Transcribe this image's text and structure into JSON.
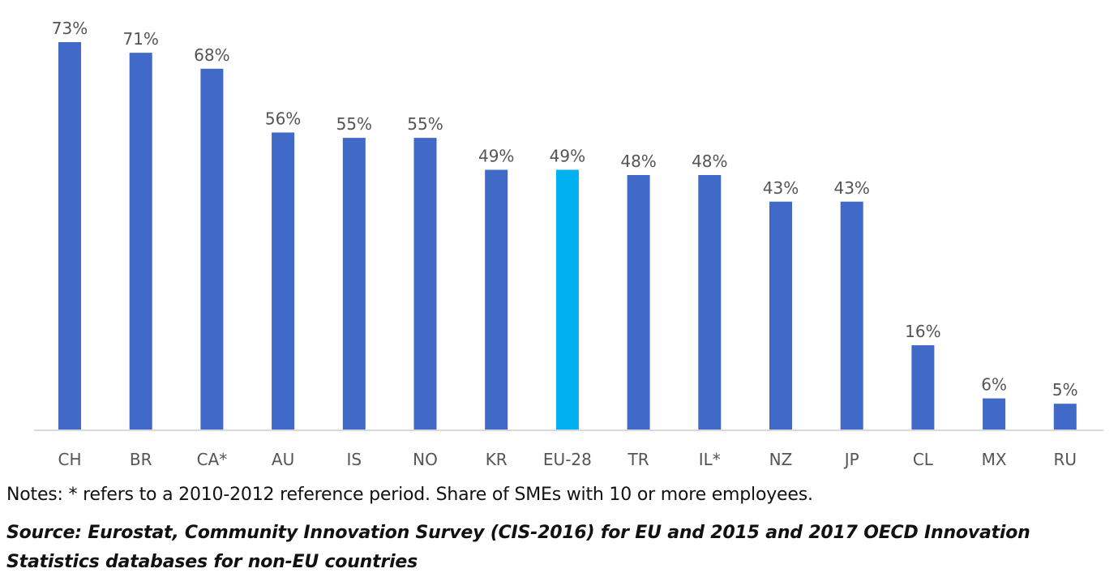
{
  "chart_data": {
    "type": "bar",
    "title": "",
    "xlabel": "",
    "ylabel": "",
    "ylim": [
      0,
      73
    ],
    "grid": false,
    "legend": "none",
    "categories": [
      "CH",
      "BR",
      "CA*",
      "AU",
      "IS",
      "NO",
      "KR",
      "EU-28",
      "TR",
      "IL*",
      "NZ",
      "JP",
      "CL",
      "MX",
      "RU"
    ],
    "values": [
      73,
      71,
      68,
      56,
      55,
      55,
      49,
      49,
      48,
      48,
      43,
      43,
      16,
      6,
      5
    ],
    "data_labels": [
      "73%",
      "71%",
      "68%",
      "56%",
      "55%",
      "55%",
      "49%",
      "49%",
      "48%",
      "48%",
      "43%",
      "43%",
      "16%",
      "6%",
      "5%"
    ],
    "highlight_category": "EU-28",
    "colors": {
      "bar": "#4169c8",
      "highlight": "#00b0f0",
      "axis": "#d9d9d9",
      "label": "#555555"
    }
  },
  "notes": "Notes: * refers to a 2010-2012 reference period. Share of SMEs with 10 or more employees.",
  "source": "Source: Eurostat, Community Innovation Survey (CIS-2016) for EU and 2015 and 2017 OECD Innovation Statistics databases for non-EU countries"
}
